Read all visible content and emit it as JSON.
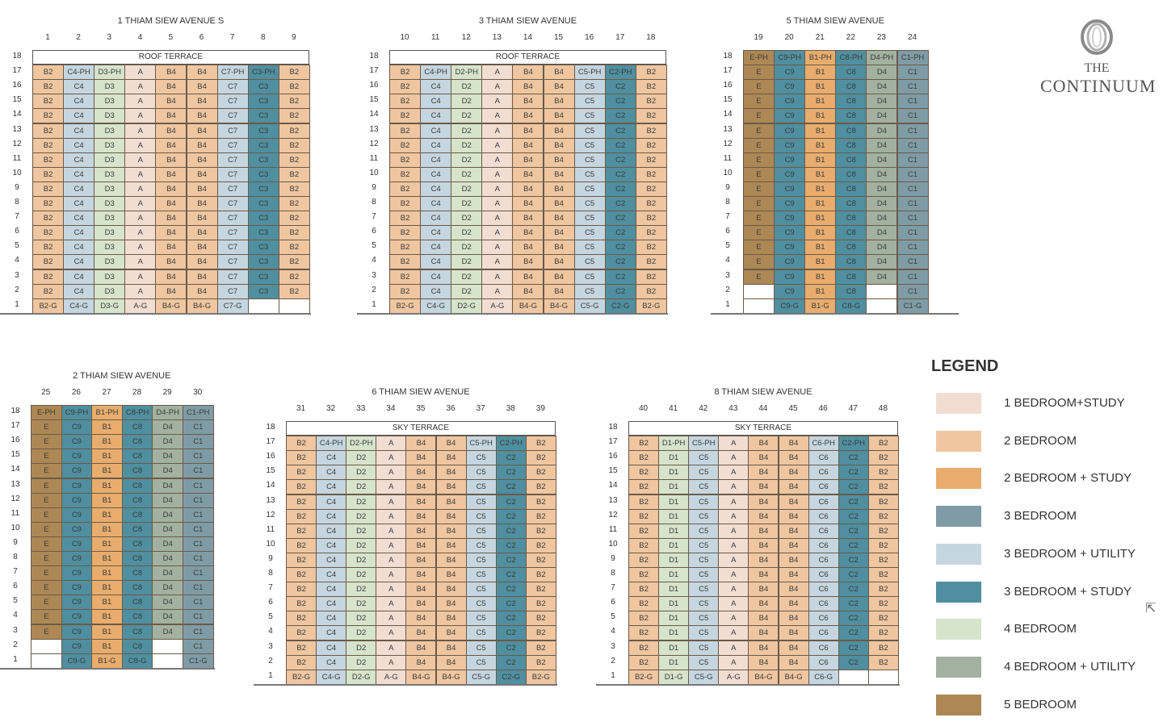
{
  "colors": {
    "1B+S": "#f2ddd3",
    "2B": "#efc6a0",
    "2B+S": "#e8ad6e",
    "3B": "#7f9ca6",
    "3B+U": "#c5d6e0",
    "3B+S": "#4f8fa0",
    "4B": "#d6e4cb",
    "4B+U": "#a2b1a0",
    "5B": "#ad8855",
    "none": "#ffffff"
  },
  "logo": {
    "line1": "THE",
    "line2": "CONTINUUM"
  },
  "legend": {
    "title": "LEGEND",
    "items": [
      {
        "label": "1 BEDROOM+STUDY",
        "key": "1B+S"
      },
      {
        "label": "2 BEDROOM",
        "key": "2B"
      },
      {
        "label": "2 BEDROOM + STUDY",
        "key": "2B+S"
      },
      {
        "label": "3 BEDROOM",
        "key": "3B"
      },
      {
        "label": "3 BEDROOM + UTILITY",
        "key": "3B+U"
      },
      {
        "label": "3 BEDROOM + STUDY",
        "key": "3B+S"
      },
      {
        "label": "4 BEDROOM",
        "key": "4B"
      },
      {
        "label": "4 BEDROOM + UTILITY",
        "key": "4B+U"
      },
      {
        "label": "5 BEDROOM",
        "key": "5B"
      }
    ]
  },
  "floor_labels": [
    "18",
    "17",
    "16",
    "15",
    "14",
    "13",
    "12",
    "11",
    "10",
    "9",
    "8",
    "7",
    "6",
    "5",
    "4",
    "3",
    "2",
    "1"
  ],
  "blocks": [
    {
      "name": "1 THIAM SIEW AVENUE S",
      "terrace": "ROOF TERRACE",
      "columns": [
        {
          "num": "1",
          "type": "B2",
          "ph": "B2",
          "fill": "2B",
          "l2": "B2",
          "g": "B2-G"
        },
        {
          "num": "2",
          "type": "C4",
          "ph": "C4-PH",
          "fill": "3B+U",
          "l2": "C4",
          "g": "C4-G"
        },
        {
          "num": "3",
          "type": "D3",
          "ph": "D3-PH",
          "fill": "4B",
          "l2": "D3",
          "g": "D3-G"
        },
        {
          "num": "4",
          "type": "A",
          "ph": "A",
          "fill": "1B+S",
          "l2": "A",
          "g": "A-G"
        },
        {
          "num": "5",
          "type": "B4",
          "ph": "B4",
          "fill": "2B",
          "l2": "B4",
          "g": "B4-G"
        },
        {
          "num": "6",
          "type": "B4",
          "ph": "B4",
          "fill": "2B",
          "l2": "B4",
          "g": "B4-G"
        },
        {
          "num": "7",
          "type": "C7",
          "ph": "C7-PH",
          "fill": "3B+U",
          "l2": "C7",
          "g": "C7-G"
        },
        {
          "num": "8",
          "type": "C3",
          "ph": "C3-PH",
          "fill": "3B+S",
          "l2": "C3",
          "g": ""
        },
        {
          "num": "9",
          "type": "B2",
          "ph": "B2",
          "fill": "2B",
          "l2": "B2",
          "g": ""
        }
      ]
    },
    {
      "name": "3 THIAM SIEW AVENUE",
      "terrace": "ROOF TERRACE",
      "columns": [
        {
          "num": "10",
          "type": "B2",
          "ph": "B2",
          "fill": "2B",
          "l2": "B2",
          "g": "B2-G"
        },
        {
          "num": "11",
          "type": "C4",
          "ph": "C4-PH",
          "fill": "3B+U",
          "l2": "C4",
          "g": "C4-G"
        },
        {
          "num": "12",
          "type": "D2",
          "ph": "D2-PH",
          "fill": "4B",
          "l2": "D2",
          "g": "D2-G"
        },
        {
          "num": "13",
          "type": "A",
          "ph": "A",
          "fill": "1B+S",
          "l2": "A",
          "g": "A-G"
        },
        {
          "num": "14",
          "type": "B4",
          "ph": "B4",
          "fill": "2B",
          "l2": "B4",
          "g": "B4-G"
        },
        {
          "num": "15",
          "type": "B4",
          "ph": "B4",
          "fill": "2B",
          "l2": "B4",
          "g": "B4-G"
        },
        {
          "num": "16",
          "type": "C5",
          "ph": "C5-PH",
          "fill": "3B+U",
          "l2": "C5",
          "g": "C5-G"
        },
        {
          "num": "17",
          "type": "C2",
          "ph": "C2-PH",
          "fill": "3B+S",
          "l2": "C2",
          "g": "C2-G"
        },
        {
          "num": "18",
          "type": "B2",
          "ph": "B2",
          "fill": "2B",
          "l2": "B2",
          "g": "B2-G"
        }
      ]
    },
    {
      "name": "5 THIAM SIEW AVENUE",
      "terrace": "",
      "columns": [
        {
          "num": "19",
          "type": "E",
          "ph": "E-PH",
          "fill": "5B",
          "l2": "",
          "g": ""
        },
        {
          "num": "20",
          "type": "C9",
          "ph": "C9-PH",
          "fill": "3B+S",
          "l2": "C9",
          "g": "C9-G"
        },
        {
          "num": "21",
          "type": "B1",
          "ph": "B1-PH",
          "fill": "2B+S",
          "l2": "B1",
          "g": "B1-G"
        },
        {
          "num": "22",
          "type": "C8",
          "ph": "C8-PH",
          "fill": "3B+S",
          "l2": "C8",
          "g": "C8-G"
        },
        {
          "num": "23",
          "type": "D4",
          "ph": "D4-PH",
          "fill": "4B+U",
          "l2": "",
          "g": ""
        },
        {
          "num": "24",
          "type": "C1",
          "ph": "C1-PH",
          "fill": "3B",
          "l2": "C1",
          "g": "C1-G"
        }
      ]
    },
    {
      "name": "2 THIAM SIEW AVENUE",
      "terrace": "",
      "columns": [
        {
          "num": "25",
          "type": "E",
          "ph": "E-PH",
          "fill": "5B",
          "l2": "",
          "g": ""
        },
        {
          "num": "26",
          "type": "C9",
          "ph": "C9-PH",
          "fill": "3B+S",
          "l2": "C9",
          "g": "C9-G"
        },
        {
          "num": "27",
          "type": "B1",
          "ph": "B1-PH",
          "fill": "2B+S",
          "l2": "B1",
          "g": "B1-G"
        },
        {
          "num": "28",
          "type": "C8",
          "ph": "C8-PH",
          "fill": "3B+S",
          "l2": "C8",
          "g": "C8-G"
        },
        {
          "num": "29",
          "type": "D4",
          "ph": "D4-PH",
          "fill": "4B+U",
          "l2": "",
          "g": ""
        },
        {
          "num": "30",
          "type": "C1",
          "ph": "C1-PH",
          "fill": "3B",
          "l2": "C1",
          "g": "C1-G"
        }
      ]
    },
    {
      "name": "6 THIAM SIEW AVENUE",
      "terrace": "SKY TERRACE",
      "columns": [
        {
          "num": "31",
          "type": "B2",
          "ph": "B2",
          "fill": "2B",
          "l2": "B2",
          "g": "B2-G"
        },
        {
          "num": "32",
          "type": "C4",
          "ph": "C4-PH",
          "fill": "3B+U",
          "l2": "C4",
          "g": "C4-G"
        },
        {
          "num": "33",
          "type": "D2",
          "ph": "D2-PH",
          "fill": "4B",
          "l2": "D2",
          "g": "D2-G"
        },
        {
          "num": "34",
          "type": "A",
          "ph": "A",
          "fill": "1B+S",
          "l2": "A",
          "g": "A-G"
        },
        {
          "num": "35",
          "type": "B4",
          "ph": "B4",
          "fill": "2B",
          "l2": "B4",
          "g": "B4-G"
        },
        {
          "num": "36",
          "type": "B4",
          "ph": "B4",
          "fill": "2B",
          "l2": "B4",
          "g": "B4-G"
        },
        {
          "num": "37",
          "type": "C5",
          "ph": "C5-PH",
          "fill": "3B+U",
          "l2": "C5",
          "g": "C5-G"
        },
        {
          "num": "38",
          "type": "C2",
          "ph": "C2-PH",
          "fill": "3B+S",
          "l2": "C2",
          "g": "C2-G"
        },
        {
          "num": "39",
          "type": "B2",
          "ph": "B2",
          "fill": "2B",
          "l2": "B2",
          "g": "B2-G"
        }
      ]
    },
    {
      "name": "8 THIAM SIEW AVENUE",
      "terrace": "SKY TERRACE",
      "columns": [
        {
          "num": "40",
          "type": "B2",
          "ph": "B2",
          "fill": "2B",
          "l2": "B2",
          "g": "B2-G"
        },
        {
          "num": "41",
          "type": "D1",
          "ph": "D1-PH",
          "fill": "4B",
          "l2": "D1",
          "g": "D1-G"
        },
        {
          "num": "42",
          "type": "C5",
          "ph": "C5-PH",
          "fill": "3B+U",
          "l2": "C5",
          "g": "C5-G"
        },
        {
          "num": "43",
          "type": "A",
          "ph": "A",
          "fill": "1B+S",
          "l2": "A",
          "g": "A-G"
        },
        {
          "num": "44",
          "type": "B4",
          "ph": "B4",
          "fill": "2B",
          "l2": "B4",
          "g": "B4-G"
        },
        {
          "num": "45",
          "type": "B4",
          "ph": "B4",
          "fill": "2B",
          "l2": "B4",
          "g": "B4-G"
        },
        {
          "num": "46",
          "type": "C6",
          "ph": "C6-PH",
          "fill": "3B+U",
          "l2": "C6",
          "g": "C6-G"
        },
        {
          "num": "47",
          "type": "C2",
          "ph": "C2-PH",
          "fill": "3B+S",
          "l2": "C2",
          "g": ""
        },
        {
          "num": "48",
          "type": "B2",
          "ph": "B2",
          "fill": "2B",
          "l2": "B2",
          "g": ""
        }
      ]
    }
  ]
}
